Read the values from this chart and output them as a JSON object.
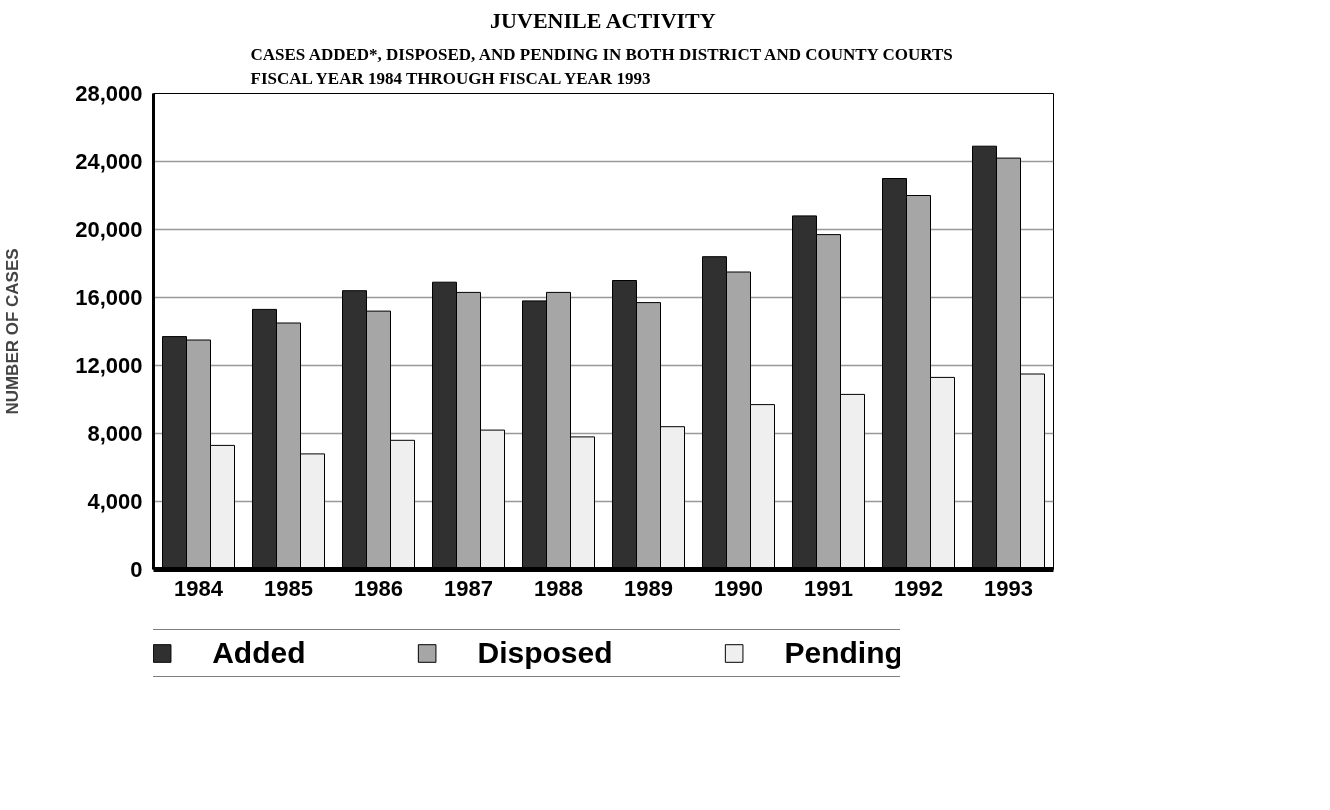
{
  "chart_data": {
    "type": "bar",
    "title": "JUVENILE ACTIVITY",
    "subtitle": "CASES ADDED*, DISPOSED, AND PENDING IN BOTH DISTRICT AND COUNTY COURTS\nFISCAL YEAR 1984 THROUGH FISCAL YEAR 1993",
    "ylabel": "NUMBER OF CASES",
    "categories": [
      "1984",
      "1985",
      "1986",
      "1987",
      "1988",
      "1989",
      "1990",
      "1991",
      "1992",
      "1993"
    ],
    "series": [
      {
        "name": "Added",
        "color": "#303030",
        "values": [
          13700,
          15300,
          16400,
          16900,
          15800,
          17000,
          18400,
          20800,
          23000,
          24900
        ]
      },
      {
        "name": "Disposed",
        "color": "#a6a6a6",
        "values": [
          13500,
          14500,
          15200,
          16300,
          16300,
          15700,
          17500,
          19700,
          22000,
          24200
        ]
      },
      {
        "name": "Pending",
        "color": "#efefef",
        "values": [
          7300,
          6800,
          7600,
          8200,
          7800,
          8400,
          9700,
          10300,
          11300,
          11500
        ]
      }
    ],
    "ylim": [
      0,
      28000
    ],
    "yticks": [
      {
        "value": 0,
        "label": "0"
      },
      {
        "value": 4000,
        "label": "4,000"
      },
      {
        "value": 8000,
        "label": "8,000"
      },
      {
        "value": 12000,
        "label": "12,000"
      },
      {
        "value": 16000,
        "label": "16,000"
      },
      {
        "value": 20000,
        "label": "20,000"
      },
      {
        "value": 24000,
        "label": "24,000"
      },
      {
        "value": 28000,
        "label": "28,000"
      }
    ],
    "grid": "y",
    "legend": "bottom"
  }
}
